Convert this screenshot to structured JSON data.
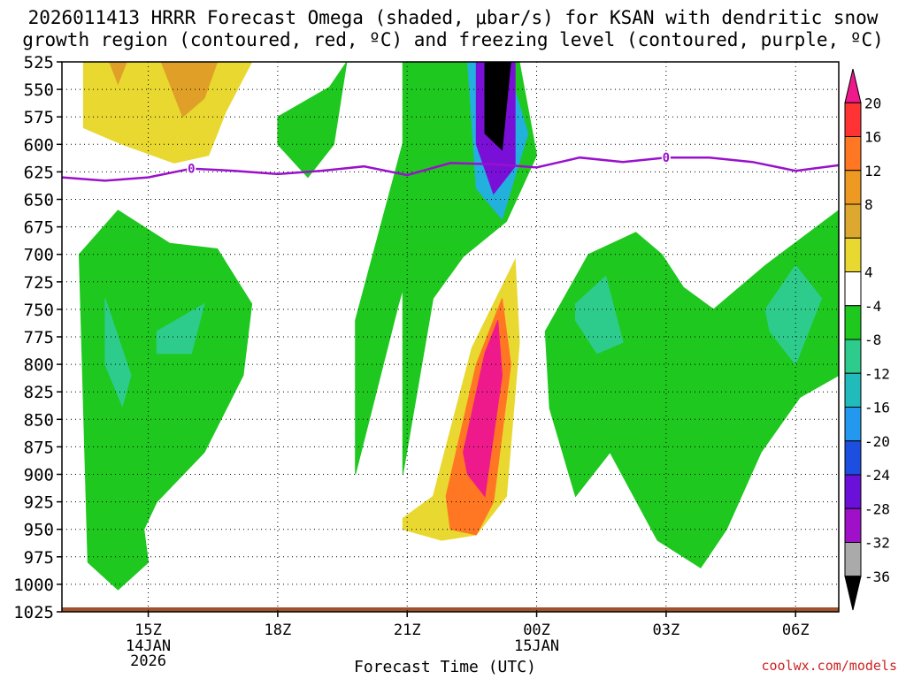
{
  "title": {
    "line1": "2026011413 HRRR Forecast Omega (shaded, μbar/s) for KSAN with dendritic snow",
    "line2": "growth region (contoured, red, ºC) and freezing level (contoured, purple, ºC)"
  },
  "credit": "coolwx.com/models",
  "chart_data": {
    "type": "time-height contour",
    "xlabel": "Forecast Time (UTC)",
    "ylim": [
      1025,
      525
    ],
    "y_ticks": [
      "525",
      "550",
      "575",
      "600",
      "625",
      "650",
      "675",
      "700",
      "725",
      "750",
      "775",
      "800",
      "825",
      "850",
      "875",
      "900",
      "925",
      "950",
      "975",
      "1000",
      "1025"
    ],
    "x_ticks": [
      {
        "label": "15Z",
        "sub": [
          "14JAN",
          "2026"
        ],
        "hour": 15
      },
      {
        "label": "18Z",
        "sub": [],
        "hour": 18
      },
      {
        "label": "21Z",
        "sub": [],
        "hour": 21
      },
      {
        "label": "00Z",
        "sub": [
          "15JAN"
        ],
        "hour": 24
      },
      {
        "label": "03Z",
        "sub": [],
        "hour": 27
      },
      {
        "label": "06Z",
        "sub": [],
        "hour": 30
      }
    ],
    "xlim": [
      13,
      31
    ],
    "grid": true,
    "colorbar": {
      "labels": [
        "20",
        "16",
        "12",
        "8",
        "4",
        "-4",
        "-8",
        "-12",
        "-16",
        "-20",
        "-24",
        "-28",
        "-32",
        "-36"
      ],
      "colors": [
        "#ee1a8c",
        "#ff3333",
        "#ff7722",
        "#ee9922",
        "#dda830",
        "#e8d830",
        "#ffffff",
        "#1ec81e",
        "#2ecc8c",
        "#22bbbb",
        "#2299ee",
        "#1c4ee0",
        "#6a10d8",
        "#a010c8",
        "#aaaaaa",
        "#000000"
      ]
    },
    "freezing_level": {
      "label": "0",
      "color": "#9911cc",
      "hours": [
        13,
        14,
        15,
        16,
        17,
        18,
        19,
        20,
        21,
        22,
        23,
        24,
        25,
        26,
        27,
        28,
        29,
        30,
        31
      ],
      "pressure_hpa": [
        630,
        633,
        630,
        622,
        624,
        627,
        624,
        620,
        628,
        617,
        618,
        621,
        612,
        616,
        612,
        612,
        616,
        624,
        619
      ]
    },
    "omega_regions": [
      {
        "value": 4,
        "hours": [
          13.5,
          14.8,
          15.3,
          15.7,
          16.0,
          16.9,
          17.4,
          16.8,
          16.4,
          15.6,
          14.4,
          13.5
        ],
        "pressure_hpa": [
          525,
          525,
          525,
          525,
          525,
          525,
          525,
          570,
          610,
          617,
          600,
          585
        ]
      },
      {
        "value": 8,
        "hours": [
          14.1,
          14.5,
          14.3
        ],
        "pressure_hpa": [
          525,
          525,
          545
        ]
      },
      {
        "value": 8,
        "hours": [
          15.3,
          16.6,
          16.3,
          15.8
        ],
        "pressure_hpa": [
          525,
          525,
          558,
          575
        ]
      },
      {
        "value": -8,
        "hours": [
          18.0,
          19.2,
          19.6,
          19.3,
          18.7,
          18.0
        ],
        "pressure_hpa": [
          575,
          548,
          525,
          600,
          630,
          600
        ]
      },
      {
        "value": -8,
        "hours": [
          13.4,
          14.3,
          15.5,
          16.6,
          17.4,
          17.2,
          16.3,
          15.2,
          14.9,
          15.0,
          14.3,
          13.6
        ],
        "pressure_hpa": [
          700,
          660,
          690,
          695,
          745,
          810,
          880,
          925,
          950,
          980,
          1005,
          980
        ]
      },
      {
        "value": -12,
        "hours": [
          14.0,
          14.6,
          14.4,
          14.0
        ],
        "pressure_hpa": [
          740,
          810,
          838,
          800
        ]
      },
      {
        "value": -12,
        "hours": [
          15.2,
          16.3,
          16.0,
          15.2
        ],
        "pressure_hpa": [
          770,
          745,
          790,
          790
        ]
      },
      {
        "value": -8,
        "hours": [
          20.9,
          22.0,
          22.7,
          23.6,
          24.0,
          23.3,
          22.3,
          21.6,
          20.9
        ],
        "pressure_hpa": [
          525,
          525,
          525,
          525,
          610,
          670,
          702,
          740,
          900
        ]
      },
      {
        "value": -8,
        "hours": [
          19.8,
          20.8,
          21.5,
          21.3,
          19.8
        ],
        "pressure_hpa": [
          900,
          745,
          650,
          540,
          760
        ]
      },
      {
        "value": -16,
        "hours": [
          22.4,
          23.3,
          23.8,
          23.2,
          22.6
        ],
        "pressure_hpa": [
          525,
          525,
          590,
          668,
          640
        ]
      },
      {
        "value": -28,
        "hours": [
          22.6,
          23.5,
          23.5,
          23.0,
          22.6
        ],
        "pressure_hpa": [
          525,
          525,
          620,
          645,
          600
        ]
      },
      {
        "value": -36,
        "hours": [
          22.8,
          23.4,
          23.2,
          22.8
        ],
        "pressure_hpa": [
          525,
          525,
          605,
          590
        ]
      },
      {
        "value": 4,
        "hours": [
          21.6,
          22.5,
          23.5,
          23.6,
          23.3,
          22.6,
          21.8,
          20.9,
          20.9
        ],
        "pressure_hpa": [
          920,
          785,
          705,
          780,
          920,
          955,
          960,
          950,
          940
        ]
      },
      {
        "value": 12,
        "hours": [
          21.9,
          22.6,
          23.2,
          23.4,
          23.0,
          22.6,
          22.0
        ],
        "pressure_hpa": [
          920,
          800,
          740,
          800,
          925,
          955,
          950
        ]
      },
      {
        "value": 20,
        "hours": [
          22.3,
          22.8,
          23.1,
          23.2,
          22.8,
          22.4
        ],
        "pressure_hpa": [
          880,
          790,
          760,
          810,
          920,
          900
        ]
      },
      {
        "value": -8,
        "hours": [
          24.2,
          25.2,
          26.3,
          26.9,
          27.4,
          28.1,
          29.3,
          31.0,
          31.0,
          30.1,
          29.2,
          28.4,
          27.8,
          26.8,
          25.7,
          24.9,
          24.3
        ],
        "pressure_hpa": [
          770,
          700,
          680,
          700,
          730,
          750,
          710,
          660,
          810,
          830,
          880,
          950,
          985,
          960,
          880,
          920,
          840
        ]
      },
      {
        "value": -12,
        "hours": [
          24.9,
          25.6,
          26.0,
          25.4,
          24.9
        ],
        "pressure_hpa": [
          745,
          720,
          780,
          790,
          760
        ]
      },
      {
        "value": -12,
        "hours": [
          29.3,
          30.0,
          30.6,
          30.0,
          29.4
        ],
        "pressure_hpa": [
          750,
          710,
          740,
          800,
          770
        ]
      }
    ]
  }
}
